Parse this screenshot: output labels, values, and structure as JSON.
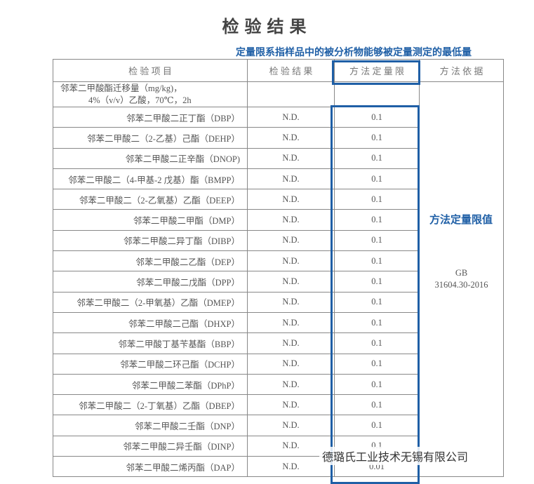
{
  "title": "检验结果",
  "note_top": "定量限系指样品中的被分析物能够被定量测定的最低量",
  "note_side": "方法定量限值",
  "watermark": "德璐氏工业技术无锡有限公司",
  "table": {
    "headers": [
      "检 验 项 目",
      "检 验 结 果",
      "方 法 定 量 限",
      "方 法 依 据"
    ],
    "group": [
      "邻苯二甲酸酯迁移量（mg/kg)，",
      "4%（v/v）乙酸，70℃，2h"
    ],
    "basis": [
      "GB",
      "31604.30-2016"
    ],
    "rows": [
      [
        "邻苯二甲酸二正丁酯（DBP）",
        "N.D.",
        "0.1"
      ],
      [
        "邻苯二甲酸二（2-乙基）己酯（DEHP）",
        "N.D.",
        "0.1"
      ],
      [
        "邻苯二甲酸二正辛酯（DNOP)",
        "N.D.",
        "0.1"
      ],
      [
        "邻苯二甲酸二（4-甲基-2 戊基）酯（BMPP）",
        "N.D.",
        "0.1"
      ],
      [
        "邻苯二甲酸二（2-乙氧基）乙酯（DEEP）",
        "N.D.",
        "0.1"
      ],
      [
        "邻苯二甲酸二甲酯（DMP）",
        "N.D.",
        "0.1"
      ],
      [
        "邻苯二甲酸二异丁酯（DIBP）",
        "N.D.",
        "0.1"
      ],
      [
        "邻苯二甲酸二乙酯（DEP）",
        "N.D.",
        "0.1"
      ],
      [
        "邻苯二甲酸二戊酯（DPP）",
        "N.D.",
        "0.1"
      ],
      [
        "邻苯二甲酸二（2-甲氧基）乙酯（DMEP）",
        "N.D.",
        "0.1"
      ],
      [
        "邻苯二甲酸二己酯（DHXP）",
        "N.D.",
        "0.1"
      ],
      [
        "邻苯二甲酸丁基苄基酯（BBP）",
        "N.D.",
        "0.1"
      ],
      [
        "邻苯二甲酸二环己酯（DCHP）",
        "N.D.",
        "0.1"
      ],
      [
        "邻苯二甲酸二苯酯（DPhP）",
        "N.D.",
        "0.1"
      ],
      [
        "邻苯二甲酸二（2-丁氧基）乙酯（DBEP）",
        "N.D.",
        "0.1"
      ],
      [
        "邻苯二甲酸二壬酯（DNP）",
        "N.D.",
        "0.1"
      ],
      [
        "邻苯二甲酸二异壬酯（DINP）",
        "N.D.",
        "0.1"
      ],
      [
        "邻苯二甲酸二烯丙酯（DAP）",
        "N.D.",
        "0.01"
      ]
    ]
  }
}
